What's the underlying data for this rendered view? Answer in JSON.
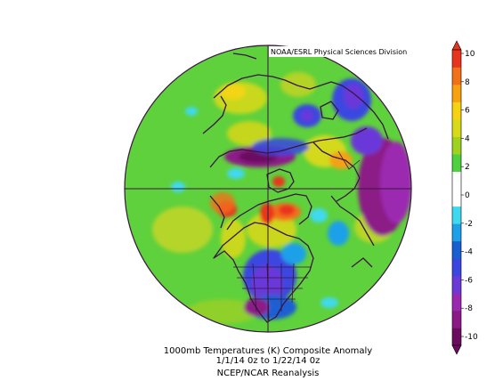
{
  "figure": {
    "credit": "NOAA/ESRL Physical Sciences Division",
    "caption_line1": "1000mb Temperatures (K)   Composite Anomaly",
    "caption_line2": "1/1/14 0z  to 1/22/14 0z",
    "caption_line3": "NCEP/NCAR Reanalysis"
  },
  "colorbar": {
    "tick_labels": [
      "10",
      "8",
      "6",
      "4",
      "2",
      "0",
      "-2",
      "-4",
      "-6",
      "-8",
      "-10"
    ],
    "colors": [
      "#6a0d5e",
      "#8c1a86",
      "#9b29b0",
      "#6a39d8",
      "#3a46e0",
      "#1a5fd2",
      "#1ea0e8",
      "#3fd9ef",
      "#ffffff",
      "#ffffff",
      "#4fd03e",
      "#9fd21f",
      "#d9da17",
      "#f6d312",
      "#f7a10e",
      "#f2701a",
      "#e8341d"
    ]
  },
  "map": {
    "projection": "north-polar-stereographic",
    "field": "1000mb temperature composite anomaly",
    "units": "K"
  }
}
